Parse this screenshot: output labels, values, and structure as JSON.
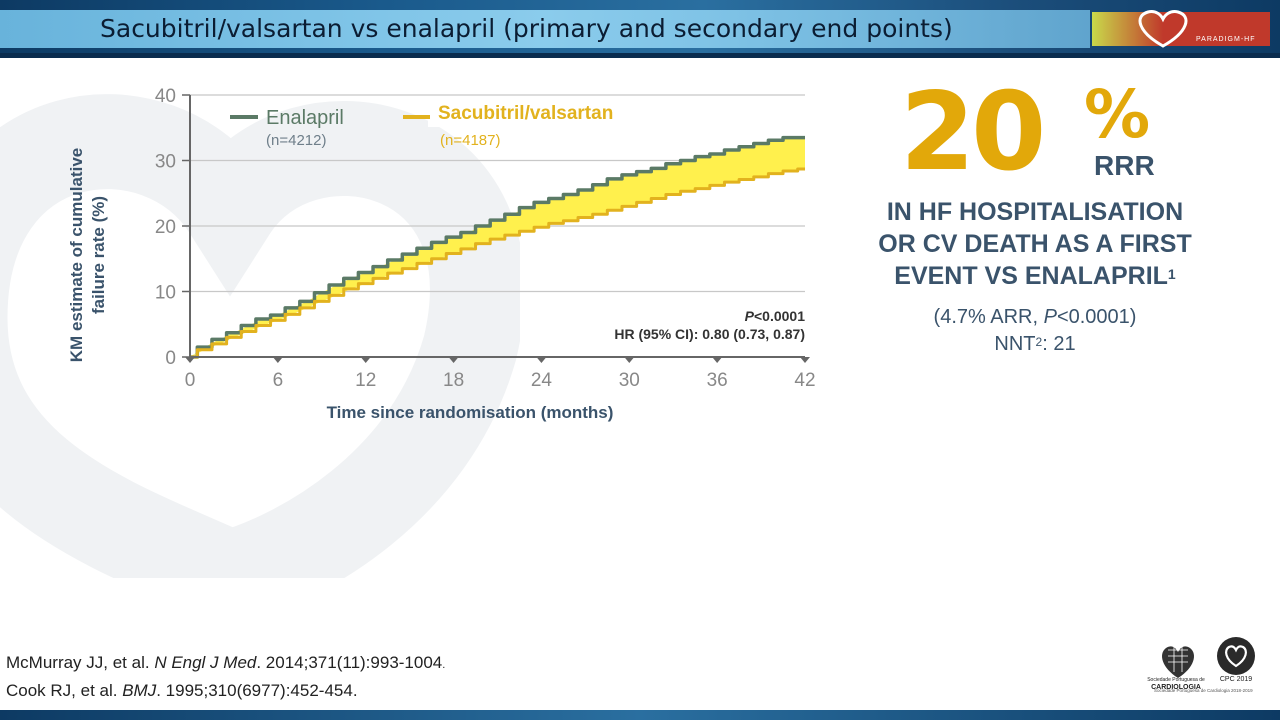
{
  "slide": {
    "title": "Sacubitril/valsartan vs enalapril (primary and secondary end points)",
    "brand": "PARADIGM-HF"
  },
  "chart_data": {
    "type": "line",
    "ylabel_line1": "KM estimate of cumulative",
    "ylabel_line2": "failure rate (%)",
    "xlabel": "Time since randomisation (months)",
    "xlim": [
      0,
      42
    ],
    "ylim": [
      0,
      40
    ],
    "x_ticks": [
      0,
      6,
      12,
      18,
      24,
      30,
      36,
      42
    ],
    "y_ticks": [
      0,
      10,
      20,
      30,
      40
    ],
    "grid": true,
    "legend_position": "top-left",
    "series": [
      {
        "name": "Enalapril",
        "n_label": "(n=4212)",
        "color": "#5b7a66",
        "x": [
          0,
          1,
          2,
          3,
          4,
          5,
          6,
          7,
          8,
          9,
          10,
          11,
          12,
          13,
          14,
          15,
          16,
          17,
          18,
          19,
          20,
          21,
          22,
          23,
          24,
          25,
          26,
          27,
          28,
          29,
          30,
          31,
          32,
          33,
          34,
          35,
          36,
          37,
          38,
          39,
          40,
          41,
          42
        ],
        "values": [
          0,
          1.5,
          2.7,
          3.7,
          4.8,
          5.8,
          6.4,
          7.5,
          8.5,
          9.8,
          11.0,
          12.0,
          12.9,
          13.8,
          14.8,
          15.7,
          16.6,
          17.5,
          18.3,
          19.0,
          20.0,
          20.9,
          21.8,
          22.8,
          23.6,
          24.2,
          24.8,
          25.5,
          26.3,
          27.2,
          27.8,
          28.3,
          28.8,
          29.5,
          30.0,
          30.6,
          31.0,
          31.6,
          32.1,
          32.6,
          33.1,
          33.5,
          33.5
        ]
      },
      {
        "name": "Sacubitril/valsartan",
        "n_label": "(n=4187)",
        "color": "#e2b21e",
        "x": [
          0,
          1,
          2,
          3,
          4,
          5,
          6,
          7,
          8,
          9,
          10,
          11,
          12,
          13,
          14,
          15,
          16,
          17,
          18,
          19,
          20,
          21,
          22,
          23,
          24,
          25,
          26,
          27,
          28,
          29,
          30,
          31,
          32,
          33,
          34,
          35,
          36,
          37,
          38,
          39,
          40,
          41,
          42
        ],
        "values": [
          0,
          1.1,
          2.0,
          3.0,
          3.9,
          4.8,
          5.6,
          6.5,
          7.5,
          8.5,
          9.4,
          10.4,
          11.2,
          12.0,
          12.8,
          13.5,
          14.3,
          15.0,
          15.8,
          16.5,
          17.3,
          18.0,
          18.6,
          19.2,
          19.8,
          20.4,
          20.8,
          21.3,
          21.8,
          22.4,
          23.0,
          23.6,
          24.2,
          24.8,
          25.3,
          25.7,
          26.2,
          26.7,
          27.1,
          27.5,
          28.0,
          28.4,
          28.7
        ]
      }
    ],
    "annotations": {
      "p_value_label": "P",
      "p_value_rest": "<0.0001",
      "hr": "HR (95% CI): 0.80 (0.73, 0.87)"
    },
    "fill_between_color": "#fff04d"
  },
  "rrr_panel": {
    "big_number": "20",
    "percent": "%",
    "rrr_label": "RRR",
    "desc_line1": "IN HF HOSPITALISATION",
    "desc_line2": "OR CV DEATH AS A FIRST",
    "desc_line3": "EVENT VS ENALAPRIL",
    "desc_sup": "1",
    "stats_line1_a": "(4.7% ARR, ",
    "stats_line1_p": "P",
    "stats_line1_b": "<0.0001)",
    "stats_line2_a": "NNT",
    "stats_line2_sup": "2",
    "stats_line2_b": ": 21",
    "accent_color": "#e2a80a",
    "text_color": "#3a536b"
  },
  "references": {
    "ref1_a": "McMurray JJ, et al. ",
    "ref1_journal": "N Engl J Med",
    "ref1_b": ". 2014;371(11):993-1004",
    "ref1_c": ".",
    "ref2_a": "Cook RJ, et al. ",
    "ref2_journal": "BMJ",
    "ref2_b": ". 1995;310(6977):452-454."
  },
  "logos": {
    "spc_line1": "Sociedade Portuguesa de",
    "spc_line2": "CARDIOLOGIA",
    "cpc_label": "CPC 2019",
    "footer": "Sociedade Portuguesa de Cardiologia 2018-2019"
  }
}
